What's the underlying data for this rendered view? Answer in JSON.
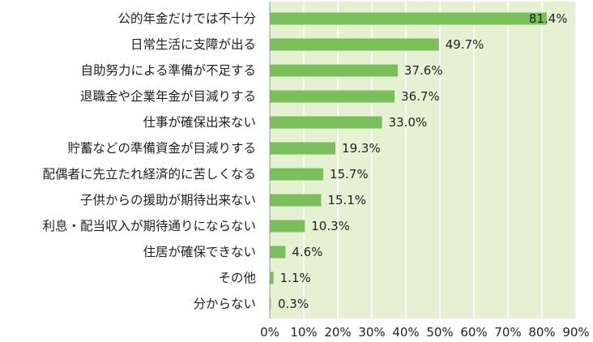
{
  "chart_data": {
    "type": "bar",
    "orientation": "horizontal",
    "categories": [
      "公的年金だけでは不十分",
      "日常生活に支障が出る",
      "自助努力による準備が不足する",
      "退職金や企業年金が目減りする",
      "仕事が確保出来ない",
      "貯蓄などの準備資金が目減りする",
      "配偶者に先立たれ経済的に苦しくなる",
      "子供からの援助が期待出来ない",
      "利息・配当収入が期待通りにならない",
      "住居が確保できない",
      "その他",
      "分からない"
    ],
    "values": [
      81.4,
      49.7,
      37.6,
      36.7,
      33.0,
      19.3,
      15.7,
      15.1,
      10.3,
      4.6,
      1.1,
      0.3
    ],
    "value_labels": [
      "81.4%",
      "49.7%",
      "37.6%",
      "36.7%",
      "33.0%",
      "19.3%",
      "15.7%",
      "15.1%",
      "10.3%",
      "4.6%",
      "1.1%",
      "0.3%"
    ],
    "xlim": [
      0,
      90
    ],
    "x_ticks": [
      0,
      10,
      20,
      30,
      40,
      50,
      60,
      70,
      80,
      90
    ],
    "x_tick_labels": [
      "0%",
      "10%",
      "20%",
      "30%",
      "40%",
      "50%",
      "60%",
      "70%",
      "80%",
      "90%"
    ],
    "grid": true,
    "colors": {
      "plot_background": "#e6f0d2",
      "bar": "#79c05a",
      "gridline": "#ffffff",
      "axis": "#999999",
      "text": "#222222"
    }
  }
}
